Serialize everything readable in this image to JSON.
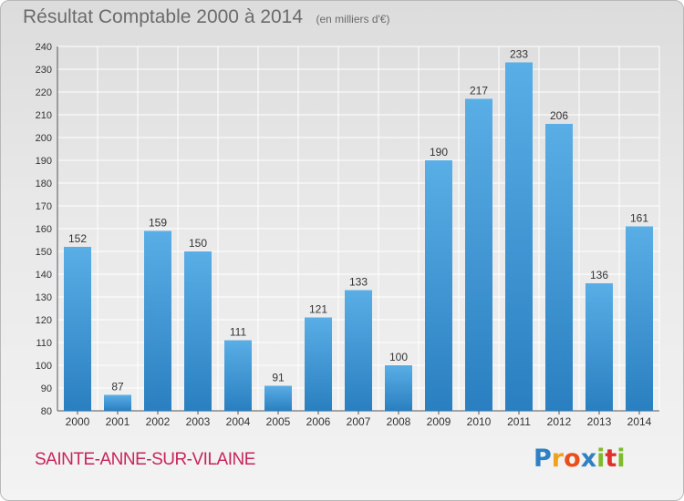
{
  "title": "Résultat Comptable 2000 à 2014",
  "subtitle": "(en milliers d'€)",
  "commune": "SAINTE-ANNE-SUR-VILAINE",
  "logo": {
    "text": "Proxiti",
    "letters": [
      "P",
      "r",
      "o",
      "x",
      "i",
      "t",
      "i"
    ]
  },
  "colors": {
    "bar_light": "#5aaee6",
    "bar_dark": "#2a7fc0",
    "title": "#6b6b6b",
    "commune": "#c8255a",
    "grid": "#ffffff"
  },
  "chart_data": {
    "type": "bar",
    "title": "Résultat Comptable 2000 à 2014",
    "subtitle": "(en milliers d'€)",
    "xlabel": "",
    "ylabel": "",
    "categories": [
      "2000",
      "2001",
      "2002",
      "2003",
      "2004",
      "2005",
      "2006",
      "2007",
      "2008",
      "2009",
      "2010",
      "2011",
      "2012",
      "2013",
      "2014"
    ],
    "values": [
      152,
      87,
      159,
      150,
      111,
      91,
      121,
      133,
      100,
      190,
      217,
      233,
      206,
      136,
      161
    ],
    "ylim": [
      80,
      240
    ],
    "yticks": [
      80,
      90,
      100,
      110,
      120,
      130,
      140,
      150,
      160,
      170,
      180,
      190,
      200,
      210,
      220,
      230,
      240
    ],
    "grid": true,
    "legend": "none"
  }
}
